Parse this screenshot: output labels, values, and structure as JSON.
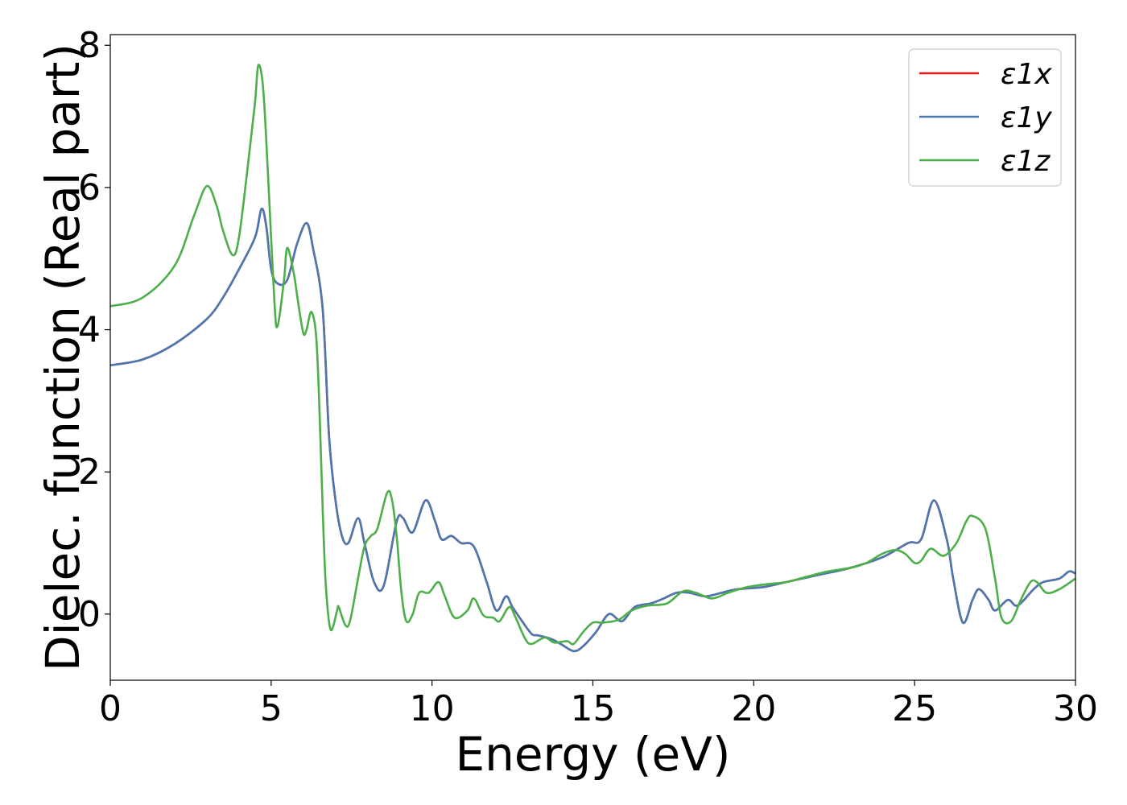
{
  "chart_data": {
    "type": "line",
    "xlabel": "Energy (eV)",
    "ylabel": "Dielec. function (Real part)",
    "xlim": [
      0,
      30
    ],
    "ylim": [
      -0.93,
      8.15
    ],
    "xticks": [
      0,
      5,
      10,
      15,
      20,
      25,
      30
    ],
    "yticks": [
      0,
      2,
      4,
      6,
      8
    ],
    "xtick_labels": [
      "0",
      "5",
      "10",
      "15",
      "20",
      "25",
      "30"
    ],
    "ytick_labels": [
      "0",
      "2",
      "4",
      "6",
      "8"
    ],
    "grid": false,
    "legend_position": "top-right",
    "series": [
      {
        "name": "ε1x",
        "color": "#e41a1c",
        "points": [
          [
            0,
            3.5
          ],
          [
            1,
            3.58
          ],
          [
            2,
            3.8
          ],
          [
            3,
            4.15
          ],
          [
            3.5,
            4.45
          ],
          [
            4,
            4.85
          ],
          [
            4.5,
            5.3
          ],
          [
            4.7,
            5.7
          ],
          [
            4.85,
            5.45
          ],
          [
            5,
            4.85
          ],
          [
            5.2,
            4.65
          ],
          [
            5.5,
            4.7
          ],
          [
            5.8,
            5.2
          ],
          [
            6.1,
            5.5
          ],
          [
            6.3,
            5.15
          ],
          [
            6.6,
            4.3
          ],
          [
            6.8,
            2.5
          ],
          [
            7,
            1.6
          ],
          [
            7.2,
            1.1
          ],
          [
            7.4,
            1.0
          ],
          [
            7.7,
            1.35
          ],
          [
            7.9,
            1.0
          ],
          [
            8.2,
            0.45
          ],
          [
            8.5,
            0.4
          ],
          [
            8.9,
            1.3
          ],
          [
            9.1,
            1.35
          ],
          [
            9.4,
            1.15
          ],
          [
            9.8,
            1.6
          ],
          [
            10.1,
            1.3
          ],
          [
            10.3,
            1.05
          ],
          [
            10.6,
            1.1
          ],
          [
            10.9,
            1.0
          ],
          [
            11.3,
            0.95
          ],
          [
            11.7,
            0.45
          ],
          [
            12,
            0.05
          ],
          [
            12.3,
            0.25
          ],
          [
            12.5,
            0.1
          ],
          [
            12.8,
            -0.1
          ],
          [
            13.1,
            -0.28
          ],
          [
            13.3,
            -0.3
          ],
          [
            13.7,
            -0.35
          ],
          [
            14,
            -0.42
          ],
          [
            14.4,
            -0.52
          ],
          [
            14.7,
            -0.45
          ],
          [
            15.1,
            -0.25
          ],
          [
            15.5,
            0.0
          ],
          [
            15.9,
            -0.1
          ],
          [
            16.3,
            0.1
          ],
          [
            16.8,
            0.15
          ],
          [
            17.2,
            0.22
          ],
          [
            17.6,
            0.3
          ],
          [
            18,
            0.3
          ],
          [
            18.5,
            0.25
          ],
          [
            19,
            0.3
          ],
          [
            19.5,
            0.35
          ],
          [
            20.3,
            0.38
          ],
          [
            21,
            0.45
          ],
          [
            22,
            0.55
          ],
          [
            23,
            0.65
          ],
          [
            24,
            0.8
          ],
          [
            24.8,
            1.0
          ],
          [
            25.2,
            1.05
          ],
          [
            25.6,
            1.6
          ],
          [
            26,
            1.05
          ],
          [
            26.2,
            0.5
          ],
          [
            26.5,
            -0.12
          ],
          [
            26.8,
            0.2
          ],
          [
            27,
            0.35
          ],
          [
            27.3,
            0.2
          ],
          [
            27.5,
            0.05
          ],
          [
            27.9,
            0.2
          ],
          [
            28.2,
            0.12
          ],
          [
            28.7,
            0.35
          ],
          [
            29,
            0.45
          ],
          [
            29.5,
            0.5
          ],
          [
            29.8,
            0.6
          ],
          [
            30,
            0.57
          ]
        ]
      },
      {
        "name": "ε1y",
        "color": "#4a78b0",
        "points": [
          [
            0,
            3.5
          ],
          [
            1,
            3.58
          ],
          [
            2,
            3.8
          ],
          [
            3,
            4.15
          ],
          [
            3.5,
            4.45
          ],
          [
            4,
            4.85
          ],
          [
            4.5,
            5.3
          ],
          [
            4.7,
            5.7
          ],
          [
            4.85,
            5.45
          ],
          [
            5,
            4.85
          ],
          [
            5.2,
            4.65
          ],
          [
            5.5,
            4.7
          ],
          [
            5.8,
            5.2
          ],
          [
            6.1,
            5.5
          ],
          [
            6.3,
            5.15
          ],
          [
            6.6,
            4.3
          ],
          [
            6.8,
            2.5
          ],
          [
            7,
            1.6
          ],
          [
            7.2,
            1.1
          ],
          [
            7.4,
            1.0
          ],
          [
            7.7,
            1.35
          ],
          [
            7.9,
            1.0
          ],
          [
            8.2,
            0.45
          ],
          [
            8.5,
            0.4
          ],
          [
            8.9,
            1.3
          ],
          [
            9.1,
            1.35
          ],
          [
            9.4,
            1.15
          ],
          [
            9.8,
            1.6
          ],
          [
            10.1,
            1.3
          ],
          [
            10.3,
            1.05
          ],
          [
            10.6,
            1.1
          ],
          [
            10.9,
            1.0
          ],
          [
            11.3,
            0.95
          ],
          [
            11.7,
            0.45
          ],
          [
            12,
            0.05
          ],
          [
            12.3,
            0.25
          ],
          [
            12.5,
            0.1
          ],
          [
            12.8,
            -0.1
          ],
          [
            13.1,
            -0.28
          ],
          [
            13.3,
            -0.3
          ],
          [
            13.7,
            -0.35
          ],
          [
            14,
            -0.42
          ],
          [
            14.4,
            -0.52
          ],
          [
            14.7,
            -0.45
          ],
          [
            15.1,
            -0.25
          ],
          [
            15.5,
            0.0
          ],
          [
            15.9,
            -0.1
          ],
          [
            16.3,
            0.1
          ],
          [
            16.8,
            0.15
          ],
          [
            17.2,
            0.22
          ],
          [
            17.6,
            0.3
          ],
          [
            18,
            0.3
          ],
          [
            18.5,
            0.25
          ],
          [
            19,
            0.3
          ],
          [
            19.5,
            0.35
          ],
          [
            20.3,
            0.38
          ],
          [
            21,
            0.45
          ],
          [
            22,
            0.55
          ],
          [
            23,
            0.65
          ],
          [
            24,
            0.8
          ],
          [
            24.8,
            1.0
          ],
          [
            25.2,
            1.05
          ],
          [
            25.6,
            1.6
          ],
          [
            26,
            1.05
          ],
          [
            26.2,
            0.5
          ],
          [
            26.5,
            -0.12
          ],
          [
            26.8,
            0.2
          ],
          [
            27,
            0.35
          ],
          [
            27.3,
            0.2
          ],
          [
            27.5,
            0.05
          ],
          [
            27.9,
            0.2
          ],
          [
            28.2,
            0.12
          ],
          [
            28.7,
            0.35
          ],
          [
            29,
            0.45
          ],
          [
            29.5,
            0.5
          ],
          [
            29.8,
            0.6
          ],
          [
            30,
            0.57
          ]
        ]
      },
      {
        "name": "ε1z",
        "color": "#4daf4a",
        "points": [
          [
            0,
            4.33
          ],
          [
            1,
            4.45
          ],
          [
            2,
            4.9
          ],
          [
            2.6,
            5.6
          ],
          [
            3,
            6.02
          ],
          [
            3.3,
            5.75
          ],
          [
            3.5,
            5.4
          ],
          [
            3.8,
            5.05
          ],
          [
            4,
            5.3
          ],
          [
            4.3,
            6.4
          ],
          [
            4.5,
            7.2
          ],
          [
            4.6,
            7.72
          ],
          [
            4.75,
            7.4
          ],
          [
            4.9,
            6.2
          ],
          [
            5.1,
            4.4
          ],
          [
            5.2,
            4.05
          ],
          [
            5.4,
            4.7
          ],
          [
            5.5,
            5.15
          ],
          [
            5.7,
            4.8
          ],
          [
            5.85,
            4.35
          ],
          [
            6,
            3.95
          ],
          [
            6.1,
            4.0
          ],
          [
            6.25,
            4.25
          ],
          [
            6.4,
            3.9
          ],
          [
            6.5,
            2.9
          ],
          [
            6.6,
            1.5
          ],
          [
            6.7,
            0.4
          ],
          [
            6.85,
            -0.22
          ],
          [
            7.05,
            0.05
          ],
          [
            7.1,
            0.1
          ],
          [
            7.3,
            -0.15
          ],
          [
            7.45,
            -0.1
          ],
          [
            7.7,
            0.5
          ],
          [
            7.9,
            0.95
          ],
          [
            8.1,
            1.1
          ],
          [
            8.3,
            1.2
          ],
          [
            8.6,
            1.7
          ],
          [
            8.75,
            1.62
          ],
          [
            8.9,
            1.1
          ],
          [
            9.05,
            0.3
          ],
          [
            9.2,
            -0.1
          ],
          [
            9.4,
            0.0
          ],
          [
            9.6,
            0.3
          ],
          [
            9.9,
            0.3
          ],
          [
            10.2,
            0.45
          ],
          [
            10.4,
            0.25
          ],
          [
            10.7,
            -0.05
          ],
          [
            11.1,
            0.05
          ],
          [
            11.3,
            0.22
          ],
          [
            11.6,
            -0.02
          ],
          [
            11.9,
            -0.05
          ],
          [
            12.1,
            -0.1
          ],
          [
            12.4,
            0.1
          ],
          [
            12.6,
            -0.05
          ],
          [
            12.9,
            -0.35
          ],
          [
            13.1,
            -0.42
          ],
          [
            13.5,
            -0.33
          ],
          [
            13.8,
            -0.4
          ],
          [
            14.2,
            -0.38
          ],
          [
            14.4,
            -0.42
          ],
          [
            14.7,
            -0.25
          ],
          [
            15,
            -0.12
          ],
          [
            15.3,
            -0.12
          ],
          [
            15.8,
            -0.08
          ],
          [
            16.2,
            0.05
          ],
          [
            16.7,
            0.12
          ],
          [
            17.3,
            0.15
          ],
          [
            17.8,
            0.32
          ],
          [
            18.2,
            0.3
          ],
          [
            18.7,
            0.22
          ],
          [
            19.2,
            0.3
          ],
          [
            19.8,
            0.38
          ],
          [
            20.4,
            0.42
          ],
          [
            21,
            0.45
          ],
          [
            21.6,
            0.52
          ],
          [
            22.3,
            0.6
          ],
          [
            23,
            0.65
          ],
          [
            23.5,
            0.72
          ],
          [
            24,
            0.85
          ],
          [
            24.4,
            0.9
          ],
          [
            24.7,
            0.85
          ],
          [
            25,
            0.72
          ],
          [
            25.2,
            0.75
          ],
          [
            25.5,
            0.92
          ],
          [
            25.9,
            0.82
          ],
          [
            26.3,
            1.0
          ],
          [
            26.6,
            1.3
          ],
          [
            26.8,
            1.38
          ],
          [
            27.2,
            1.2
          ],
          [
            27.5,
            0.5
          ],
          [
            27.7,
            -0.05
          ],
          [
            28.0,
            -0.1
          ],
          [
            28.3,
            0.2
          ],
          [
            28.6,
            0.45
          ],
          [
            28.8,
            0.45
          ],
          [
            29.1,
            0.3
          ],
          [
            29.5,
            0.35
          ],
          [
            30,
            0.5
          ]
        ]
      }
    ]
  }
}
